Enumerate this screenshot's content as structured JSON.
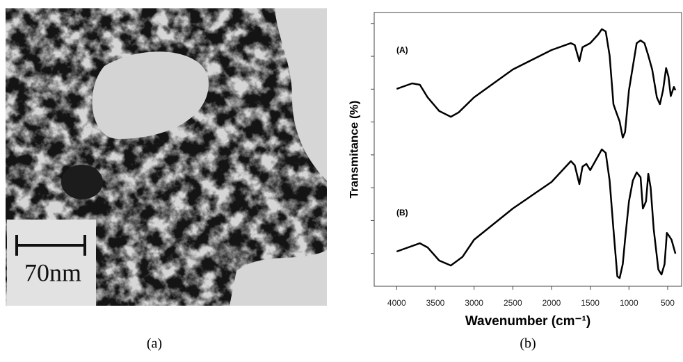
{
  "panel_a": {
    "scale_label": "70nm",
    "caption": "(a)"
  },
  "chart_data": {
    "type": "line",
    "caption": "(b)",
    "x_label": "Wavenumber (cm⁻¹)",
    "y_label": "Transmitance (%)",
    "xlim": [
      4290,
      320
    ],
    "xticks": [
      4000,
      3500,
      3000,
      2500,
      2000,
      1500,
      1000,
      500
    ],
    "ylim": [
      0,
      100
    ],
    "yticks": [
      12,
      24,
      36,
      48,
      60,
      72,
      84,
      96
    ],
    "series": [
      {
        "name": "(A)",
        "color": "#000000",
        "x": [
          4000,
          3800,
          3700,
          3600,
          3450,
          3300,
          3200,
          3000,
          2500,
          2000,
          1750,
          1700,
          1640,
          1600,
          1500,
          1400,
          1350,
          1300,
          1250,
          1200,
          1170,
          1120,
          1080,
          1050,
          1000,
          900,
          850,
          800,
          750,
          700,
          640,
          600,
          560,
          520,
          490,
          460,
          420,
          400
        ],
        "values": [
          72.1,
          74.1,
          73.6,
          69.0,
          64.0,
          61.9,
          63.5,
          69.0,
          79.2,
          86.3,
          88.8,
          88.1,
          82.2,
          87.3,
          88.8,
          91.9,
          93.9,
          93.1,
          84.3,
          66.5,
          64.0,
          60.2,
          54.3,
          56.3,
          71.6,
          88.8,
          89.8,
          88.8,
          84.3,
          79.2,
          69.0,
          66.5,
          71.6,
          79.7,
          76.6,
          69.5,
          72.8,
          71.6
        ]
      },
      {
        "name": "(B)",
        "color": "#000000",
        "x": [
          4000,
          3700,
          3600,
          3450,
          3300,
          3150,
          3000,
          2500,
          2000,
          1750,
          1700,
          1640,
          1600,
          1550,
          1500,
          1400,
          1350,
          1300,
          1250,
          1200,
          1150,
          1120,
          1080,
          1050,
          1000,
          950,
          900,
          850,
          820,
          780,
          750,
          720,
          680,
          620,
          580,
          540,
          510,
          480,
          450,
          400
        ],
        "values": [
          12.7,
          15.7,
          14.2,
          9.4,
          7.6,
          10.7,
          17.0,
          28.4,
          38.1,
          45.7,
          44.2,
          37.3,
          43.7,
          44.7,
          42.4,
          47.5,
          50.0,
          48.7,
          38.6,
          20.8,
          3.6,
          3.0,
          8.1,
          17.0,
          31.0,
          38.6,
          41.6,
          39.8,
          28.4,
          31.0,
          41.1,
          36.0,
          20.8,
          6.1,
          4.3,
          8.1,
          19.5,
          18.3,
          17.0,
          11.9
        ]
      }
    ]
  }
}
